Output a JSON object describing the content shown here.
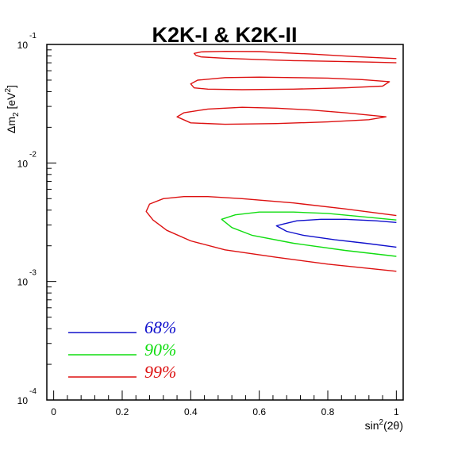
{
  "chart_data": {
    "type": "contour",
    "title": "K2K-I & K2K-II",
    "xlabel": {
      "base": "sin",
      "sup": "2",
      "rest": "(2θ)"
    },
    "ylabel": {
      "prefix": "Δm",
      "sub": "2",
      "unit_open": " [eV",
      "unit_sup": "2",
      "unit_close": "]"
    },
    "xlim": [
      -0.02,
      1.02
    ],
    "ylim": [
      0.0001,
      0.1
    ],
    "yscale": "log",
    "grid": false,
    "legend_position": "bottom-left",
    "x_ticks": [
      {
        "value": 0,
        "label": "0"
      },
      {
        "value": 0.2,
        "label": "0.2"
      },
      {
        "value": 0.4,
        "label": "0.4"
      },
      {
        "value": 0.6,
        "label": "0.6"
      },
      {
        "value": 0.8,
        "label": "0.8"
      },
      {
        "value": 1.0,
        "label": "1"
      }
    ],
    "y_ticks": [
      {
        "value": 0.1,
        "base": "10",
        "exp": "-1"
      },
      {
        "value": 0.01,
        "base": "10",
        "exp": "-2"
      },
      {
        "value": 0.001,
        "base": "10",
        "exp": "-3"
      },
      {
        "value": 0.0001,
        "base": "10",
        "exp": "-4"
      }
    ],
    "series": [
      {
        "name": "68%",
        "color": "#1010cc",
        "contours": [
          {
            "closed": false,
            "points": [
              [
                1.0,
                0.00315
              ],
              [
                0.94,
                0.00325
              ],
              [
                0.85,
                0.00335
              ],
              [
                0.78,
                0.00335
              ],
              [
                0.71,
                0.00325
              ],
              [
                0.67,
                0.00305
              ],
              [
                0.65,
                0.00295
              ],
              [
                0.68,
                0.00265
              ],
              [
                0.73,
                0.00245
              ],
              [
                0.82,
                0.00225
              ],
              [
                0.91,
                0.0021
              ],
              [
                1.0,
                0.00195
              ]
            ]
          }
        ]
      },
      {
        "name": "90%",
        "color": "#11dd11",
        "contours": [
          {
            "closed": false,
            "points": [
              [
                1.0,
                0.0033
              ],
              [
                0.91,
                0.0035
              ],
              [
                0.8,
                0.00375
              ],
              [
                0.7,
                0.00385
              ],
              [
                0.6,
                0.00385
              ],
              [
                0.53,
                0.00365
              ],
              [
                0.49,
                0.00335
              ],
              [
                0.52,
                0.00285
              ],
              [
                0.58,
                0.00245
              ],
              [
                0.7,
                0.0021
              ],
              [
                0.85,
                0.00183
              ],
              [
                1.0,
                0.00163
              ]
            ]
          }
        ]
      },
      {
        "name": "99%",
        "color": "#dd1111",
        "contours": [
          {
            "closed": false,
            "points": [
              [
                1.0,
                0.0036
              ],
              [
                0.85,
                0.0041
              ],
              [
                0.7,
                0.0046
              ],
              [
                0.55,
                0.005
              ],
              [
                0.45,
                0.0052
              ],
              [
                0.38,
                0.0052
              ],
              [
                0.32,
                0.005
              ],
              [
                0.28,
                0.0045
              ],
              [
                0.27,
                0.0039
              ],
              [
                0.29,
                0.0033
              ],
              [
                0.33,
                0.0027
              ],
              [
                0.4,
                0.0022
              ],
              [
                0.5,
                0.00185
              ],
              [
                0.65,
                0.0016
              ],
              [
                0.8,
                0.0014
              ],
              [
                1.0,
                0.00122
              ]
            ]
          },
          {
            "closed": true,
            "points": [
              [
                0.36,
                0.0245
              ],
              [
                0.38,
                0.0265
              ],
              [
                0.45,
                0.0285
              ],
              [
                0.55,
                0.0295
              ],
              [
                0.65,
                0.029
              ],
              [
                0.75,
                0.028
              ],
              [
                0.85,
                0.0265
              ],
              [
                0.93,
                0.0252
              ],
              [
                0.97,
                0.0245
              ],
              [
                0.92,
                0.0232
              ],
              [
                0.8,
                0.0222
              ],
              [
                0.65,
                0.0215
              ],
              [
                0.5,
                0.0212
              ],
              [
                0.4,
                0.0218
              ],
              [
                0.36,
                0.0245
              ]
            ]
          },
          {
            "closed": true,
            "points": [
              [
                0.4,
                0.0465
              ],
              [
                0.42,
                0.05
              ],
              [
                0.5,
                0.0525
              ],
              [
                0.6,
                0.053
              ],
              [
                0.7,
                0.0525
              ],
              [
                0.8,
                0.052
              ],
              [
                0.9,
                0.0505
              ],
              [
                0.98,
                0.0485
              ],
              [
                0.96,
                0.0445
              ],
              [
                0.85,
                0.043
              ],
              [
                0.7,
                0.042
              ],
              [
                0.55,
                0.0415
              ],
              [
                0.45,
                0.042
              ],
              [
                0.41,
                0.043
              ],
              [
                0.4,
                0.0465
              ]
            ]
          },
          {
            "closed": false,
            "points": [
              [
                1.0,
                0.076
              ],
              [
                0.88,
                0.079
              ],
              [
                0.75,
                0.083
              ],
              [
                0.6,
                0.087
              ],
              [
                0.5,
                0.0875
              ],
              [
                0.43,
                0.0865
              ],
              [
                0.41,
                0.084
              ],
              [
                0.415,
                0.081
              ],
              [
                0.43,
                0.0785
              ],
              [
                0.5,
                0.0765
              ],
              [
                0.6,
                0.0745
              ],
              [
                0.7,
                0.073
              ],
              [
                0.82,
                0.072
              ],
              [
                0.92,
                0.071
              ],
              [
                1.0,
                0.07
              ]
            ]
          }
        ]
      }
    ],
    "legend": [
      {
        "label": "68%",
        "color": "#1010cc"
      },
      {
        "label": "90%",
        "color": "#11dd11"
      },
      {
        "label": "99%",
        "color": "#dd1111"
      }
    ]
  }
}
